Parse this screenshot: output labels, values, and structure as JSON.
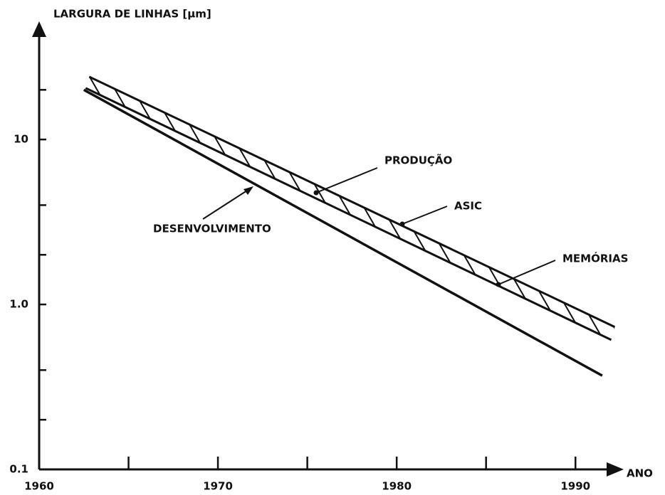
{
  "chart_data": {
    "type": "line",
    "title": "LARGURA DE LINHAS [µm]",
    "x_label": "ANO",
    "log_y": true,
    "xlim": [
      1960,
      1992.5
    ],
    "xticks": [
      1960,
      1970,
      1980,
      1990
    ],
    "x_minor_ticks": [
      1965,
      1975,
      1985
    ],
    "ylim": [
      0.1,
      50
    ],
    "yticks": [
      {
        "value": 0.1,
        "label": "0.1"
      },
      {
        "value": 1,
        "label": "1.0"
      },
      10
    ],
    "y_minor_ticks": [
      0.2,
      0.4,
      2,
      4,
      20
    ],
    "series": [
      {
        "name": "DESENVOLVIMENTO",
        "color": "#111111",
        "x": [
          1962.5,
          1991.5
        ],
        "values": [
          20,
          0.37
        ]
      }
    ],
    "band": {
      "color": "#111111",
      "upper": {
        "x": [
          1962.8,
          1992.2
        ],
        "values": [
          24,
          0.73
        ]
      },
      "lower": {
        "x": [
          1962.6,
          1992
        ],
        "values": [
          20.5,
          0.61
        ]
      }
    },
    "annotations": [
      "PRODUÇÃO",
      "ASIC",
      "MEMÓRIAS"
    ]
  }
}
